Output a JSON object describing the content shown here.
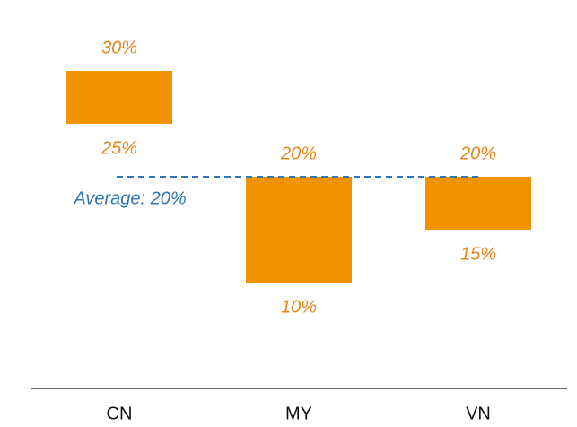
{
  "chart_data": {
    "type": "range",
    "categories": [
      "CN",
      "MY",
      "VN"
    ],
    "series": [
      {
        "values": [
          30,
          20,
          20
        ],
        "value_labels": [
          "30%",
          "20%",
          "20%"
        ]
      },
      {
        "values": [
          25,
          10,
          15
        ],
        "value_labels": [
          "25%",
          "10%",
          "15%"
        ]
      }
    ],
    "color": "#f39200",
    "label_color": "#e8861a",
    "average": {
      "value": 20,
      "label": "Average: 20%",
      "color": "#2e75b6"
    },
    "ylim": [
      0,
      35
    ]
  }
}
